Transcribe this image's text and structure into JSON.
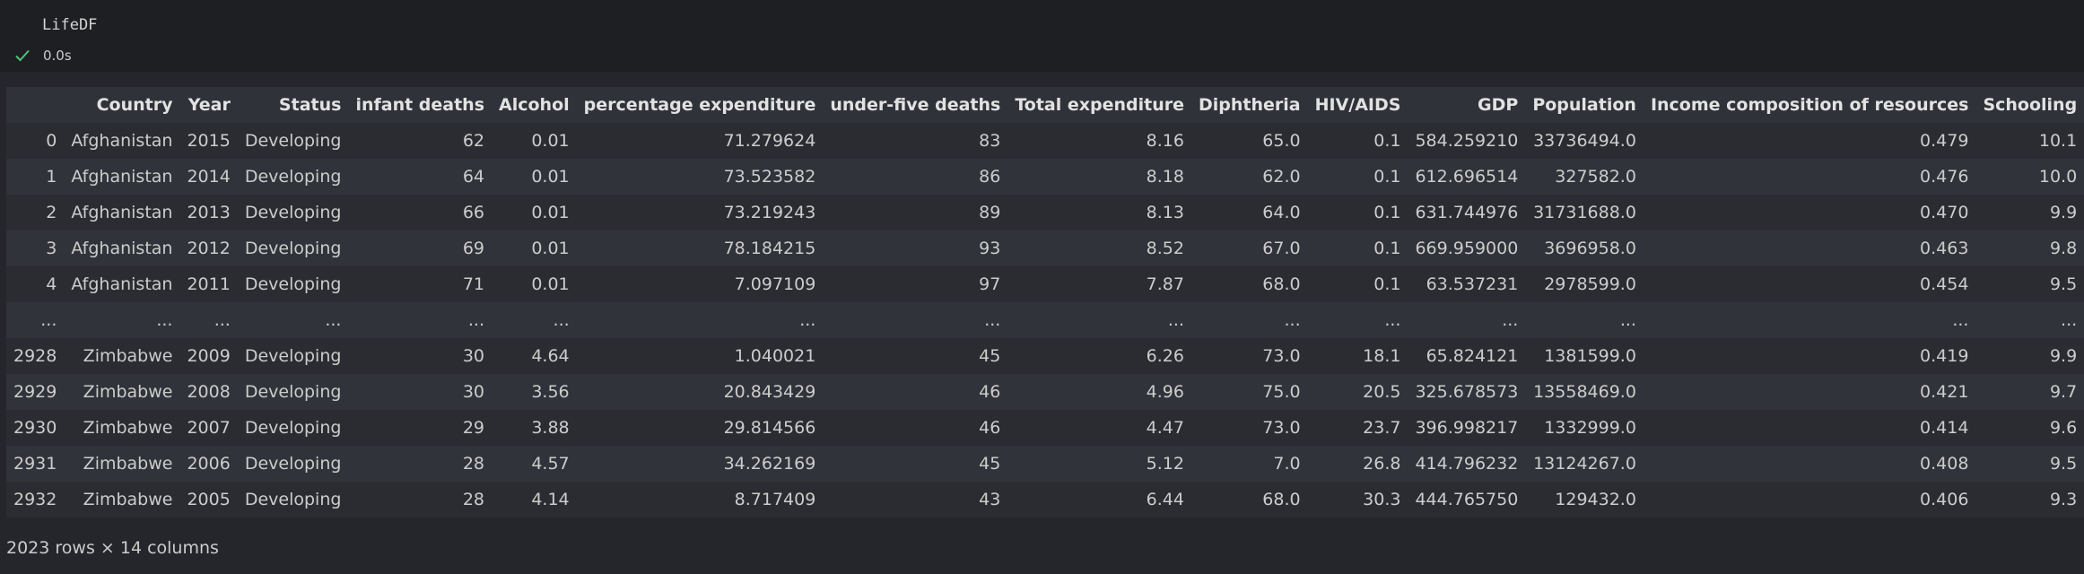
{
  "cell": {
    "code": "LifeDF",
    "exec_time": "0.0s"
  },
  "colors": {
    "check": "#4ec37a",
    "background": "#1f2126",
    "header_bg": "#30323a"
  },
  "table": {
    "columns": [
      "",
      "Country",
      "Year",
      "Status",
      "infant deaths",
      "Alcohol",
      "percentage expenditure",
      "under-five deaths",
      "Total expenditure",
      "Diphtheria",
      "HIV/AIDS",
      "GDP",
      "Population",
      "Income composition of resources",
      "Schooling"
    ],
    "rows": [
      [
        "0",
        "Afghanistan",
        "2015",
        "Developing",
        "62",
        "0.01",
        "71.279624",
        "83",
        "8.16",
        "65.0",
        "0.1",
        "584.259210",
        "33736494.0",
        "0.479",
        "10.1"
      ],
      [
        "1",
        "Afghanistan",
        "2014",
        "Developing",
        "64",
        "0.01",
        "73.523582",
        "86",
        "8.18",
        "62.0",
        "0.1",
        "612.696514",
        "327582.0",
        "0.476",
        "10.0"
      ],
      [
        "2",
        "Afghanistan",
        "2013",
        "Developing",
        "66",
        "0.01",
        "73.219243",
        "89",
        "8.13",
        "64.0",
        "0.1",
        "631.744976",
        "31731688.0",
        "0.470",
        "9.9"
      ],
      [
        "3",
        "Afghanistan",
        "2012",
        "Developing",
        "69",
        "0.01",
        "78.184215",
        "93",
        "8.52",
        "67.0",
        "0.1",
        "669.959000",
        "3696958.0",
        "0.463",
        "9.8"
      ],
      [
        "4",
        "Afghanistan",
        "2011",
        "Developing",
        "71",
        "0.01",
        "7.097109",
        "97",
        "7.87",
        "68.0",
        "0.1",
        "63.537231",
        "2978599.0",
        "0.454",
        "9.5"
      ],
      [
        "...",
        "...",
        "...",
        "...",
        "...",
        "...",
        "...",
        "...",
        "...",
        "...",
        "...",
        "...",
        "...",
        "...",
        "..."
      ],
      [
        "2928",
        "Zimbabwe",
        "2009",
        "Developing",
        "30",
        "4.64",
        "1.040021",
        "45",
        "6.26",
        "73.0",
        "18.1",
        "65.824121",
        "1381599.0",
        "0.419",
        "9.9"
      ],
      [
        "2929",
        "Zimbabwe",
        "2008",
        "Developing",
        "30",
        "3.56",
        "20.843429",
        "46",
        "4.96",
        "75.0",
        "20.5",
        "325.678573",
        "13558469.0",
        "0.421",
        "9.7"
      ],
      [
        "2930",
        "Zimbabwe",
        "2007",
        "Developing",
        "29",
        "3.88",
        "29.814566",
        "46",
        "4.47",
        "73.0",
        "23.7",
        "396.998217",
        "1332999.0",
        "0.414",
        "9.6"
      ],
      [
        "2931",
        "Zimbabwe",
        "2006",
        "Developing",
        "28",
        "4.57",
        "34.262169",
        "45",
        "5.12",
        "7.0",
        "26.8",
        "414.796232",
        "13124267.0",
        "0.408",
        "9.5"
      ],
      [
        "2932",
        "Zimbabwe",
        "2005",
        "Developing",
        "28",
        "4.14",
        "8.717409",
        "43",
        "6.44",
        "68.0",
        "30.3",
        "444.765750",
        "129432.0",
        "0.406",
        "9.3"
      ]
    ],
    "footer": "2023 rows × 14 columns"
  }
}
